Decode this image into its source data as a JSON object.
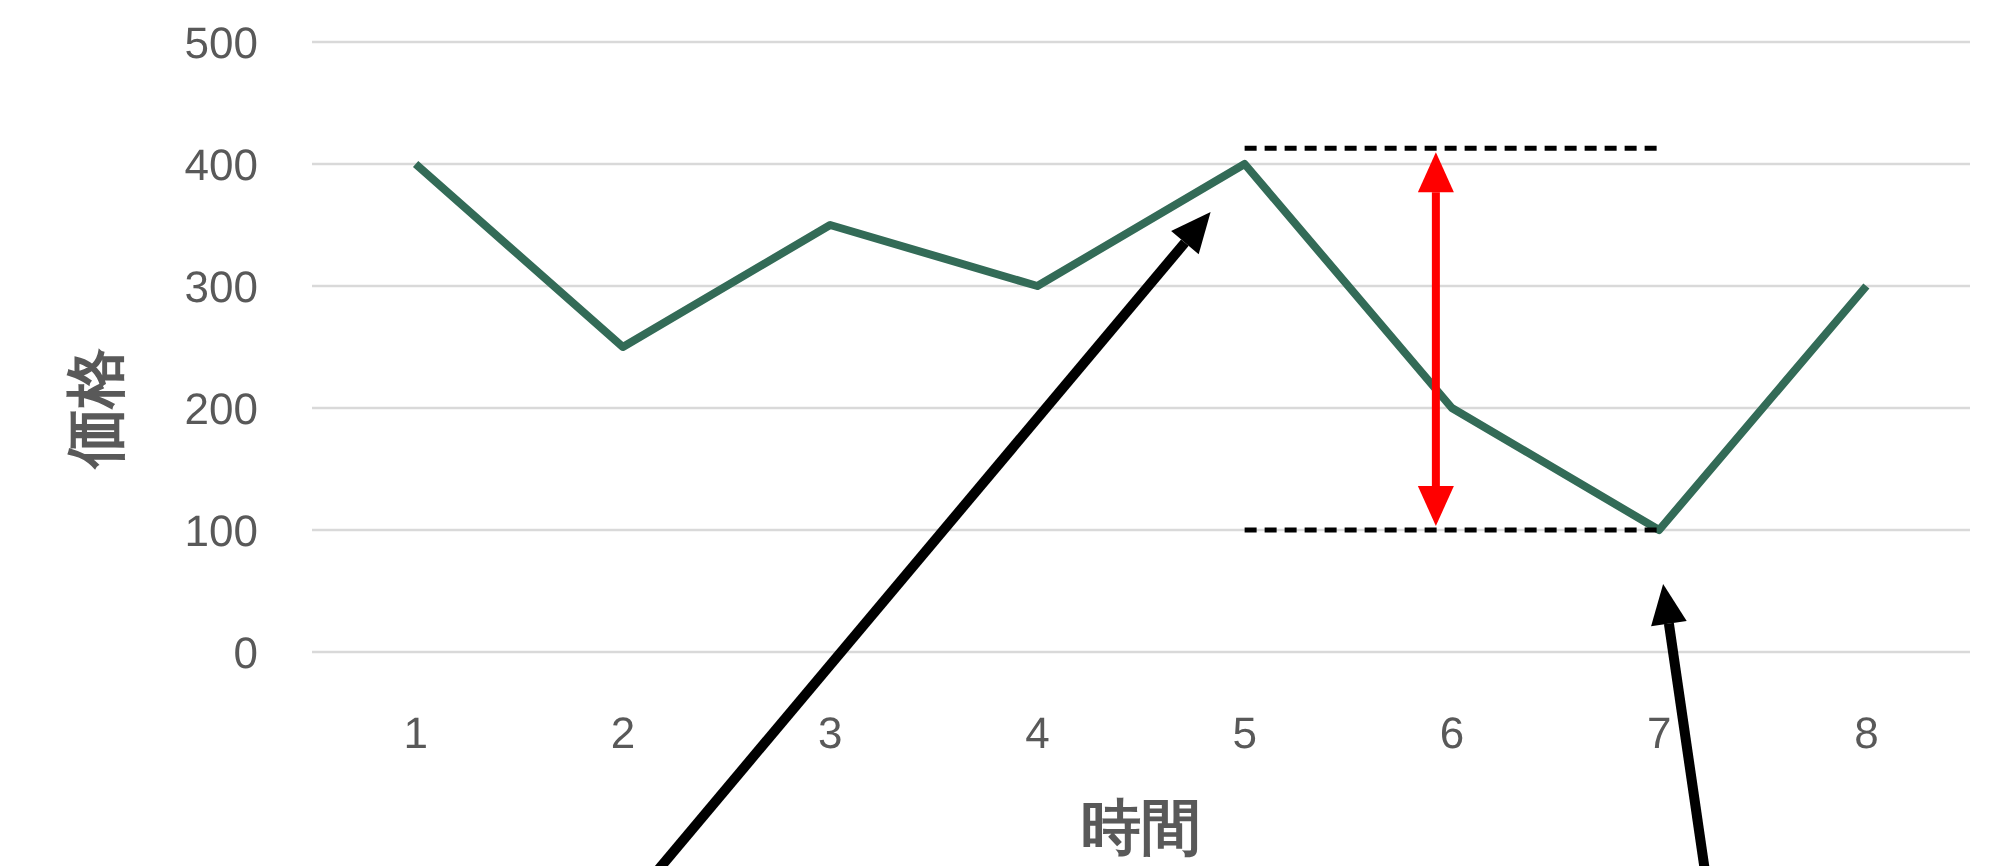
{
  "chart_data": {
    "type": "line",
    "xlabel": "時間",
    "ylabel": "価格",
    "categories": [
      "1",
      "2",
      "3",
      "4",
      "5",
      "6",
      "7",
      "8"
    ],
    "series": [
      {
        "color": "#336b57",
        "values": [
          400,
          250,
          350,
          300,
          400,
          200,
          100,
          300
        ]
      },
      {
        "color": "#000000",
        "line_style": "dashed",
        "values": [
          null,
          null,
          null,
          null,
          413,
          413,
          413,
          null
        ]
      },
      {
        "color": "#000000",
        "line_style": "dashed",
        "values": [
          null,
          null,
          null,
          null,
          100,
          100,
          100,
          null
        ]
      }
    ],
    "ylim": [
      0,
      500
    ],
    "yticks": [
      0,
      100,
      200,
      300,
      400,
      500
    ],
    "grid": "y"
  }
}
